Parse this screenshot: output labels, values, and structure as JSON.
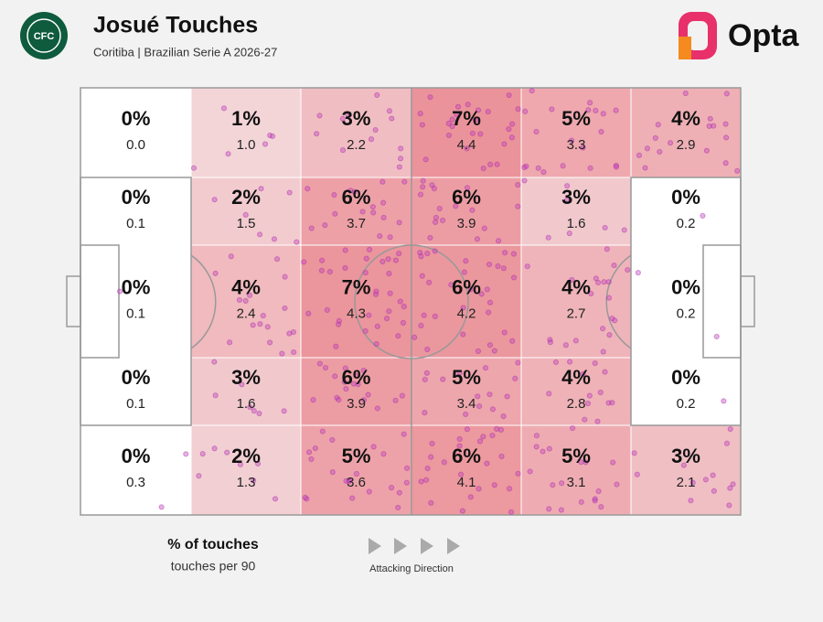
{
  "header": {
    "title": "Josué Touches",
    "subtitle": "Coritiba | Brazilian Serie A 2026-27",
    "badge": "CFC",
    "brand": "Opta"
  },
  "grid": {
    "rows": [
      [
        {
          "pct": "0%",
          "per90": "0.0"
        },
        {
          "pct": "1%",
          "per90": "1.0"
        },
        {
          "pct": "3%",
          "per90": "2.2"
        },
        {
          "pct": "7%",
          "per90": "4.4"
        },
        {
          "pct": "5%",
          "per90": "3.3"
        },
        {
          "pct": "4%",
          "per90": "2.9"
        }
      ],
      [
        {
          "pct": "0%",
          "per90": "0.1"
        },
        {
          "pct": "2%",
          "per90": "1.5"
        },
        {
          "pct": "6%",
          "per90": "3.7"
        },
        {
          "pct": "6%",
          "per90": "3.9"
        },
        {
          "pct": "3%",
          "per90": "1.6"
        },
        {
          "pct": "0%",
          "per90": "0.2"
        }
      ],
      [
        {
          "pct": "0%",
          "per90": "0.1"
        },
        {
          "pct": "4%",
          "per90": "2.4"
        },
        {
          "pct": "7%",
          "per90": "4.3"
        },
        {
          "pct": "6%",
          "per90": "4.2"
        },
        {
          "pct": "4%",
          "per90": "2.7"
        },
        {
          "pct": "0%",
          "per90": "0.2"
        }
      ],
      [
        {
          "pct": "0%",
          "per90": "0.1"
        },
        {
          "pct": "3%",
          "per90": "1.6"
        },
        {
          "pct": "6%",
          "per90": "3.9"
        },
        {
          "pct": "5%",
          "per90": "3.4"
        },
        {
          "pct": "4%",
          "per90": "2.8"
        },
        {
          "pct": "0%",
          "per90": "0.2"
        }
      ],
      [
        {
          "pct": "0%",
          "per90": "0.3"
        },
        {
          "pct": "2%",
          "per90": "1.3"
        },
        {
          "pct": "5%",
          "per90": "3.6"
        },
        {
          "pct": "6%",
          "per90": "4.1"
        },
        {
          "pct": "5%",
          "per90": "3.1"
        },
        {
          "pct": "3%",
          "per90": "2.1"
        }
      ]
    ]
  },
  "legend": {
    "primary": "% of touches",
    "secondary": "touches per 90",
    "direction": "Attacking Direction"
  }
}
